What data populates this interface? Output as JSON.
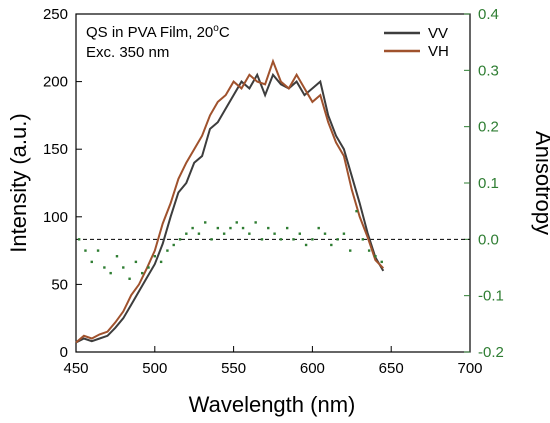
{
  "chart_data": {
    "type": "line",
    "annotations": {
      "sample": "QS in PVA Film, 20",
      "sample_sup": "o",
      "sample_unit": "C",
      "excitation": "Exc. 350 nm"
    },
    "xlabel": "Wavelength (nm)",
    "ylabel_left": "Intensity (a.u.)",
    "ylabel_right": "Anisotropy",
    "xlim": [
      450,
      700
    ],
    "ylim_left": [
      0,
      250
    ],
    "ylim_right": [
      -0.2,
      0.4
    ],
    "x_ticks": [
      450,
      500,
      550,
      600,
      650,
      700
    ],
    "y_ticks_left": [
      0,
      50,
      100,
      150,
      200,
      250
    ],
    "y_ticks_right": [
      "-0.2",
      "-0.1",
      "0.0",
      "0.1",
      "0.2",
      "0.3",
      "0.4"
    ],
    "legend_position": "top-right",
    "grid": false,
    "series": [
      {
        "name": "VV",
        "axis": "left",
        "color": "#3d3d3d",
        "x": [
          450,
          455,
          460,
          465,
          470,
          475,
          480,
          485,
          490,
          495,
          500,
          505,
          510,
          515,
          520,
          525,
          530,
          535,
          540,
          545,
          550,
          555,
          560,
          565,
          570,
          575,
          580,
          585,
          590,
          595,
          600,
          605,
          610,
          615,
          620,
          625,
          630,
          635,
          640,
          645
        ],
        "values": [
          7,
          10,
          8,
          10,
          12,
          18,
          25,
          35,
          45,
          55,
          65,
          80,
          100,
          118,
          125,
          140,
          145,
          165,
          170,
          180,
          190,
          200,
          195,
          205,
          190,
          205,
          198,
          195,
          200,
          190,
          195,
          200,
          175,
          160,
          150,
          130,
          110,
          88,
          70,
          60
        ]
      },
      {
        "name": "VH",
        "axis": "left",
        "color": "#a0522d",
        "x": [
          450,
          455,
          460,
          465,
          470,
          475,
          480,
          485,
          490,
          495,
          500,
          505,
          510,
          515,
          520,
          525,
          530,
          535,
          540,
          545,
          550,
          555,
          560,
          565,
          570,
          575,
          580,
          585,
          590,
          595,
          600,
          605,
          610,
          615,
          620,
          625,
          630,
          635,
          640,
          645
        ],
        "values": [
          7,
          12,
          10,
          13,
          15,
          22,
          30,
          42,
          50,
          62,
          75,
          95,
          110,
          128,
          140,
          150,
          160,
          175,
          185,
          190,
          200,
          195,
          205,
          200,
          198,
          215,
          200,
          195,
          205,
          195,
          185,
          190,
          170,
          155,
          145,
          120,
          100,
          85,
          68,
          62
        ]
      },
      {
        "name": "Anisotropy",
        "axis": "right",
        "color": "#2e7d32",
        "style": "scatter",
        "x": [
          452,
          456,
          460,
          464,
          468,
          472,
          476,
          480,
          484,
          488,
          492,
          496,
          500,
          504,
          508,
          512,
          516,
          520,
          524,
          528,
          532,
          536,
          540,
          544,
          548,
          552,
          556,
          560,
          564,
          568,
          572,
          576,
          580,
          584,
          588,
          592,
          596,
          600,
          604,
          608,
          612,
          616,
          620,
          624,
          628,
          632,
          636,
          640,
          644
        ],
        "values": [
          0.0,
          -0.02,
          -0.04,
          -0.02,
          -0.05,
          -0.06,
          -0.03,
          -0.05,
          -0.07,
          -0.04,
          -0.06,
          -0.05,
          -0.03,
          -0.04,
          -0.02,
          -0.01,
          0.0,
          0.01,
          0.02,
          0.01,
          0.03,
          0.0,
          0.02,
          0.01,
          0.02,
          0.03,
          0.02,
          0.01,
          0.03,
          0.0,
          0.02,
          0.01,
          0.0,
          0.02,
          0.0,
          0.01,
          -0.01,
          0.0,
          0.02,
          0.01,
          -0.01,
          0.0,
          0.01,
          -0.02,
          0.05,
          0.0,
          -0.02,
          -0.03,
          -0.04
        ]
      }
    ],
    "reference_line": {
      "axis": "right",
      "value": 0.0,
      "style": "dashed"
    }
  }
}
